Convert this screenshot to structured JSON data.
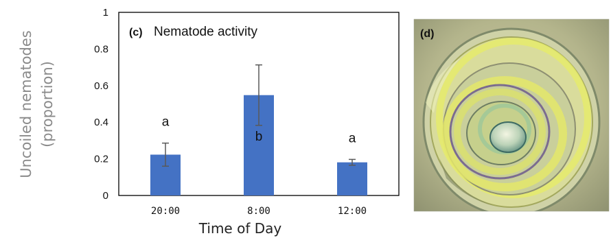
{
  "chart_data": {
    "type": "bar",
    "panel_tag": "(c)",
    "title": "Nematode activity",
    "ylabel_line1": "Uncoiled nematodes",
    "ylabel_line2": "(proportion)",
    "xlabel": "Time of Day",
    "categories": [
      "20:00",
      "8:00",
      "12:00"
    ],
    "values": [
      0.223,
      0.548,
      0.181
    ],
    "errors": [
      0.063,
      0.165,
      0.016
    ],
    "significance": [
      "a",
      "b",
      "a"
    ],
    "ylim": [
      0,
      1
    ],
    "yticks": [
      "0",
      "0.2",
      "0.4",
      "0.6",
      "0.8",
      "1"
    ],
    "bar_color": "#4472C4",
    "grid": false,
    "legend": "none"
  },
  "photo": {
    "tag": "(d)",
    "subject": "coiled nematode micrograph"
  }
}
